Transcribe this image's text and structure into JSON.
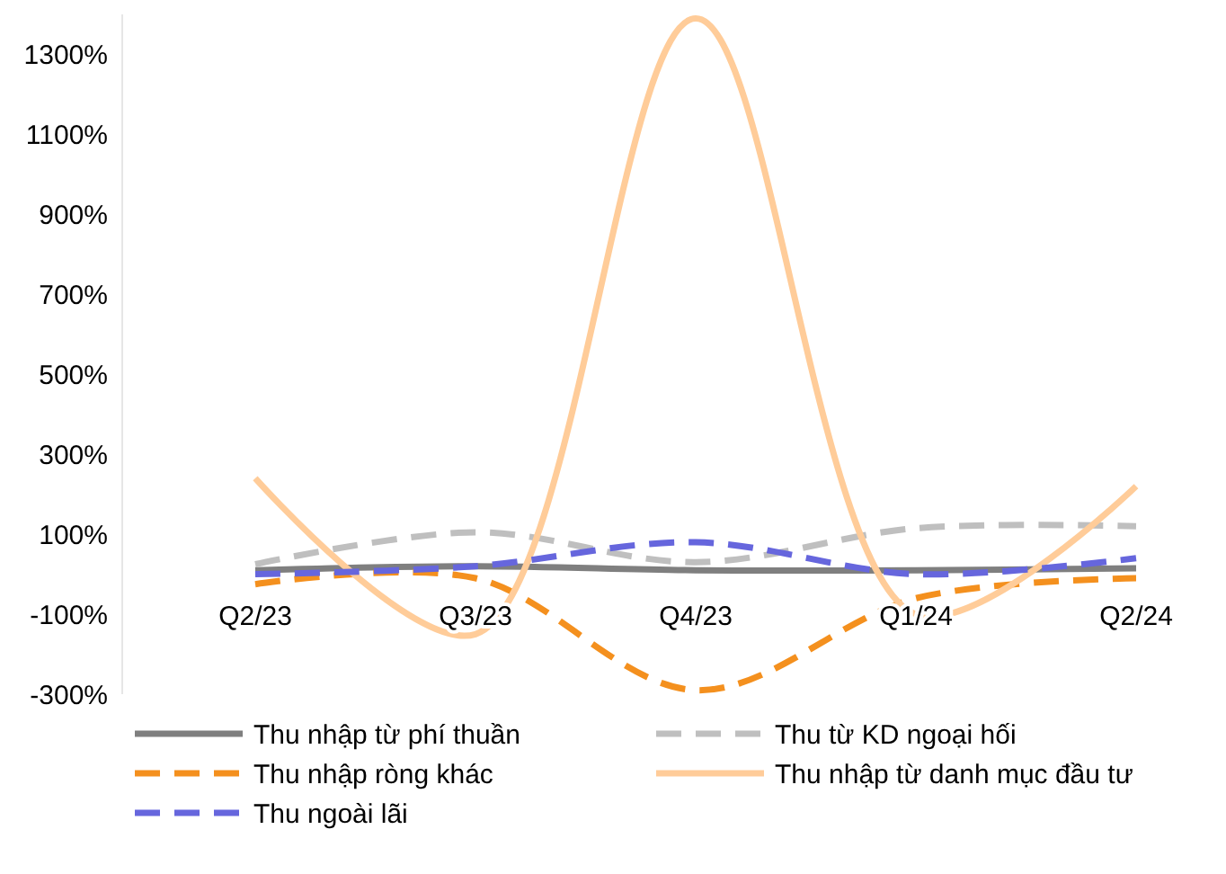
{
  "chart_data": {
    "type": "line",
    "categories": [
      "Q2/23",
      "Q3/23",
      "Q4/23",
      "Q1/24",
      "Q2/24"
    ],
    "series": [
      {
        "name": "Thu nhập từ phí thuần",
        "color": "#7f7f7f",
        "line_style": "solid",
        "values": [
          10,
          20,
          10,
          10,
          15
        ]
      },
      {
        "name": "Thu từ KD ngoại hối",
        "color": "#bfbfbf",
        "line_style": "dashed",
        "values": [
          25,
          105,
          30,
          115,
          120
        ]
      },
      {
        "name": "Thu nhập ròng khác",
        "color": "#f4901e",
        "line_style": "dashed",
        "values": [
          -25,
          -10,
          -290,
          -60,
          -10
        ]
      },
      {
        "name": "Thu nhập từ danh mục đầu tư",
        "color": "#ffcc99",
        "line_style": "solid",
        "values": [
          240,
          -150,
          1390,
          -100,
          220
        ]
      },
      {
        "name": "Thu ngoài lãi",
        "color": "#6666dd",
        "line_style": "dashed",
        "values": [
          0,
          20,
          80,
          0,
          40
        ]
      }
    ],
    "ylim": [
      -300,
      1400
    ],
    "yticks": [
      {
        "value": -300,
        "label": "-300%"
      },
      {
        "value": -100,
        "label": "-100%"
      },
      {
        "value": 100,
        "label": "100%"
      },
      {
        "value": 300,
        "label": "300%"
      },
      {
        "value": 500,
        "label": "500%"
      },
      {
        "value": 700,
        "label": "700%"
      },
      {
        "value": 900,
        "label": "900%"
      },
      {
        "value": 1100,
        "label": "1100%"
      },
      {
        "value": 1300,
        "label": "1300%"
      }
    ],
    "grid": false,
    "legend": "bottom",
    "marker": "none"
  }
}
